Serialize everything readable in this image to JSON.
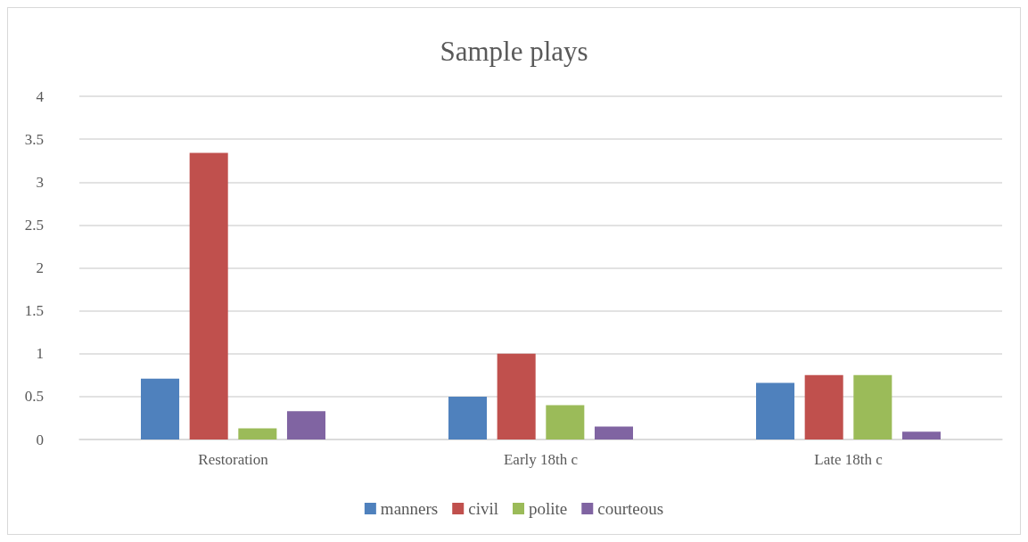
{
  "chart_data": {
    "type": "bar",
    "title": "Sample plays",
    "categories": [
      "Restoration",
      "Early 18th c",
      "Late 18th c"
    ],
    "series": [
      {
        "name": "manners",
        "color": "#4f81bd",
        "values": [
          0.71,
          0.5,
          0.66
        ]
      },
      {
        "name": "civil",
        "color": "#c0504d",
        "values": [
          3.34,
          1.0,
          0.75
        ]
      },
      {
        "name": "polite",
        "color": "#9bbb59",
        "values": [
          0.13,
          0.4,
          0.75
        ]
      },
      {
        "name": "courteous",
        "color": "#8064a2",
        "values": [
          0.33,
          0.15,
          0.09
        ]
      }
    ],
    "ylim": [
      0,
      4
    ],
    "yticks": [
      0,
      0.5,
      1,
      1.5,
      2,
      2.5,
      3,
      3.5,
      4
    ],
    "grid": "y",
    "legend": "bottom"
  }
}
